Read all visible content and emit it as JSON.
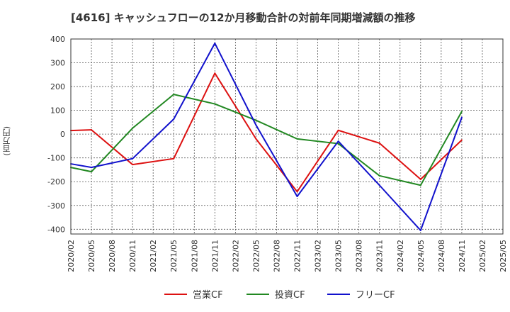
{
  "title": "[4616]  キャッシュフローの12か月移動合計の対前年同期増減額の推移",
  "y_unit_label": "(百万円)",
  "chart_data": {
    "type": "line",
    "title": "[4616]  キャッシュフローの12か月移動合計の対前年同期増減額の推移",
    "ylabel": "(百万円)",
    "xlabel": "",
    "ylim": [
      -420,
      400
    ],
    "yticks": [
      400,
      300,
      200,
      100,
      0,
      -100,
      -200,
      -300,
      -400
    ],
    "categories": [
      "2020/02",
      "2020/05",
      "2020/08",
      "2020/11",
      "2021/02",
      "2021/05",
      "2021/08",
      "2021/11",
      "2022/02",
      "2022/05",
      "2022/08",
      "2022/11",
      "2023/02",
      "2023/05",
      "2023/08",
      "2023/11",
      "2024/02",
      "2024/05",
      "2024/08",
      "2024/11",
      "2025/02",
      "2025/05"
    ],
    "grid": true,
    "legend_position": "bottom",
    "series": [
      {
        "name": "営業CF",
        "color": "#dd1111",
        "values": [
          15,
          18,
          null,
          -128,
          null,
          -103,
          null,
          256,
          null,
          -20,
          null,
          -242,
          null,
          16,
          null,
          -38,
          null,
          -190,
          null,
          -25,
          null,
          null
        ]
      },
      {
        "name": "投資CF",
        "color": "#228822",
        "values": [
          -140,
          -158,
          null,
          25,
          null,
          167,
          null,
          127,
          null,
          58,
          null,
          -20,
          null,
          -40,
          null,
          -175,
          null,
          -215,
          null,
          95,
          null,
          null
        ]
      },
      {
        "name": "フリーCF",
        "color": "#1111cc",
        "values": [
          -125,
          -140,
          null,
          -103,
          null,
          63,
          null,
          382,
          null,
          38,
          null,
          -262,
          null,
          -30,
          null,
          -215,
          null,
          -405,
          null,
          70,
          null,
          null
        ]
      }
    ]
  }
}
